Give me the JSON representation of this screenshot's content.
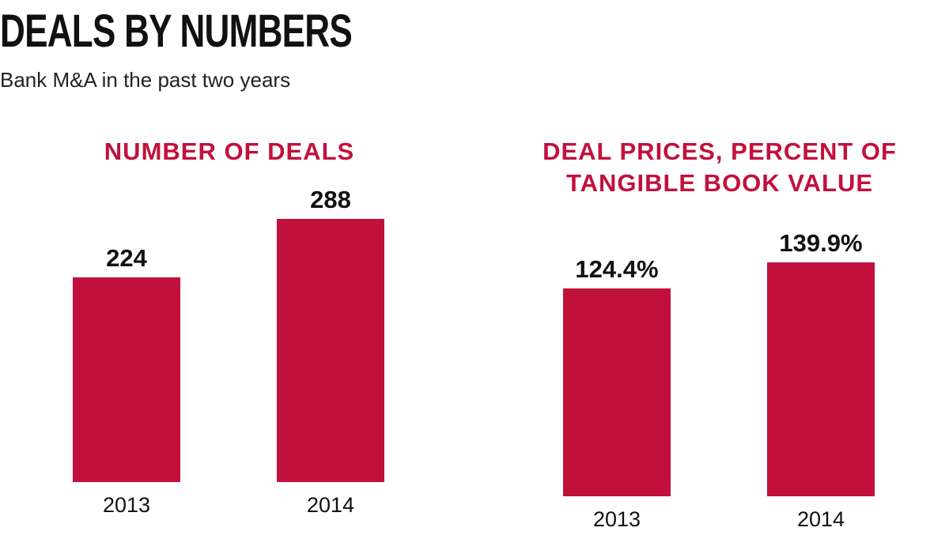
{
  "title": "DEALS BY NUMBERS",
  "subtitle": "Bank M&A in the past two years",
  "chart_data": [
    {
      "type": "bar",
      "title": "NUMBER OF DEALS",
      "categories": [
        "2013",
        "2014"
      ],
      "values": [
        224,
        288
      ],
      "color": "#c2103c"
    },
    {
      "type": "bar",
      "title": "DEAL PRICES, PERCENT OF TANGIBLE BOOK VALUE",
      "categories": [
        "2013",
        "2014"
      ],
      "values": [
        124.4,
        139.9
      ],
      "value_labels": [
        "124.4%",
        "139.9%"
      ],
      "color": "#c2103c"
    }
  ]
}
